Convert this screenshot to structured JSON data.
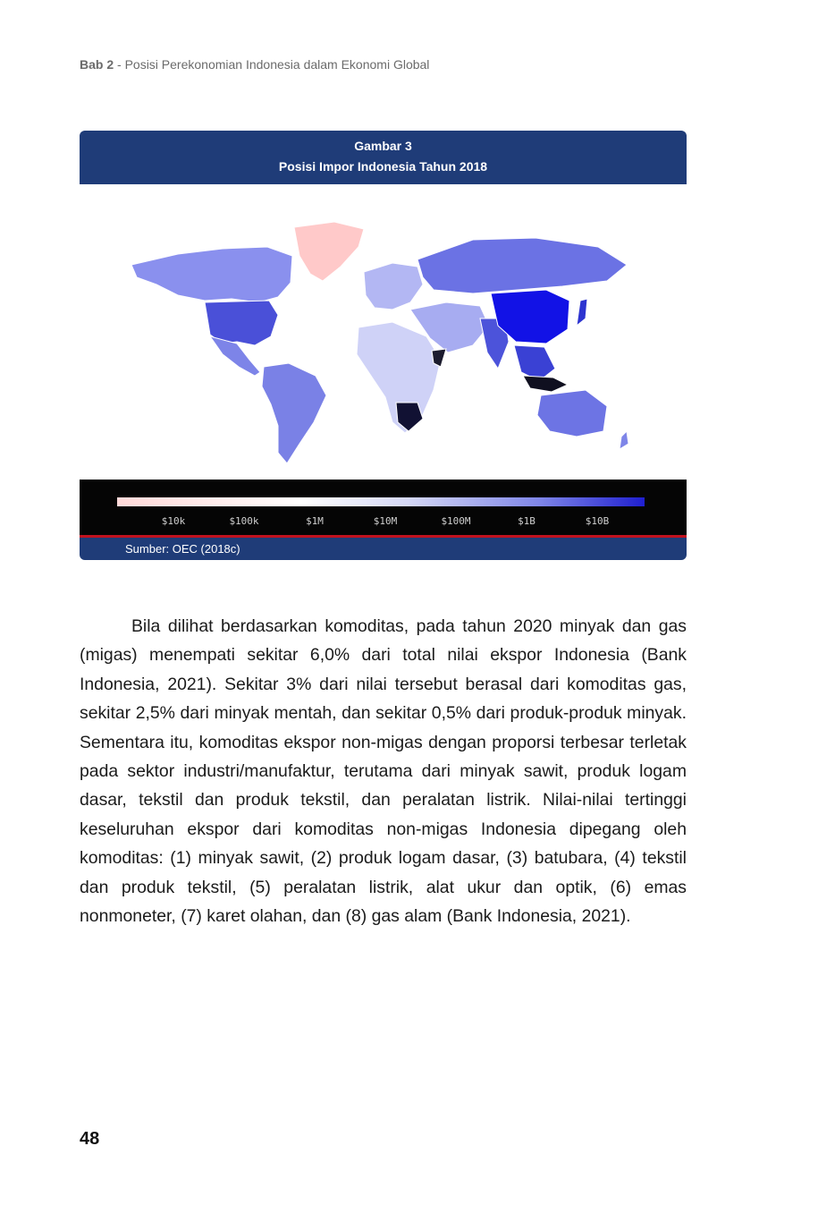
{
  "running_head": {
    "chapter": "Bab 2",
    "title": " - Posisi Perekonomian Indonesia dalam Ekonomi Global"
  },
  "figure": {
    "number": "Gambar 3",
    "title": "Posisi Impor Indonesia Tahun 2018",
    "legend_ticks": [
      "$10k",
      "$100k",
      "$1M",
      "$10M",
      "$100M",
      "$1B",
      "$10B"
    ],
    "source": "Sumber: OEC (2018c)",
    "colors": {
      "header": "#1f3c78",
      "low": "#ffd9d9",
      "mid": "#d5d8f6",
      "high": "#1f1fd0",
      "rule": "#c1121f"
    }
  },
  "body": {
    "paragraph": "Bila dilihat berdasarkan komoditas, pada tahun 2020 minyak dan gas (migas) menempati sekitar 6,0% dari total nilai ekspor Indonesia (Bank Indonesia, 2021). Sekitar 3% dari nilai tersebut berasal dari komoditas gas, sekitar 2,5% dari minyak mentah, dan sekitar 0,5% dari produk-produk minyak. Sementara itu, komoditas ekspor non-migas dengan proporsi terbesar terletak pada sektor industri/manufaktur, terutama dari minyak sawit, produk logam dasar, tekstil dan produk tekstil, dan peralatan listrik. Nilai-nilai tertinggi keseluruhan ekspor dari komoditas non-migas Indonesia dipegang oleh komoditas: (1) minyak sawit, (2) produk logam dasar, (3) batubara, (4) tekstil dan produk tekstil, (5) peralatan listrik, alat ukur dan optik, (6) emas nonmoneter, (7) karet olahan, dan (8) gas alam (Bank Indonesia, 2021)."
  },
  "page_number": "48"
}
